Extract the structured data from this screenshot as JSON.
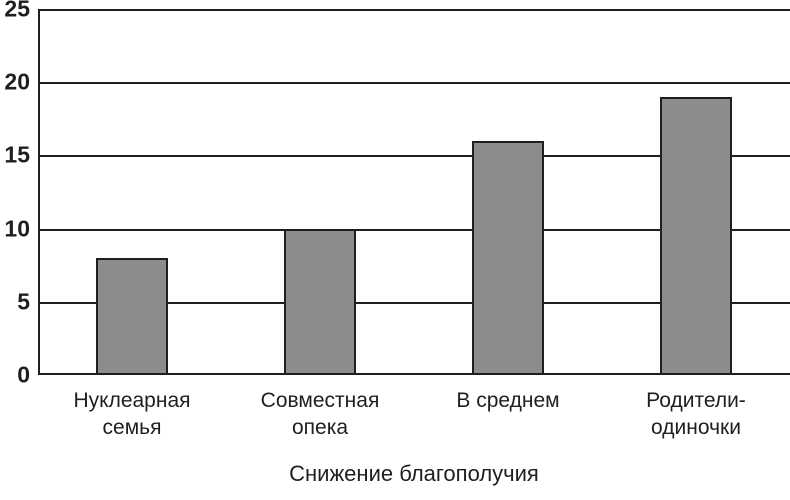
{
  "chart_data": {
    "type": "bar",
    "title": "",
    "categories": [
      "Нуклеарная семья",
      "Совместная опека",
      "В среднем",
      "Родители-одиночки"
    ],
    "values": [
      8,
      10,
      16,
      19
    ],
    "xlabel": "Снижение благополучия",
    "ylabel": "",
    "ylim": [
      0,
      25
    ],
    "yticks": [
      0,
      5,
      10,
      15,
      20,
      25
    ],
    "grid": "horizontal",
    "legend": "none",
    "colors": {
      "bar_fill": "#8c8c8c",
      "bar_border": "#1f1f1f",
      "gridline": "#1f1f1f",
      "axis": "#1f1f1f",
      "text": "#1f1f1f",
      "background": "#ffffff"
    }
  }
}
